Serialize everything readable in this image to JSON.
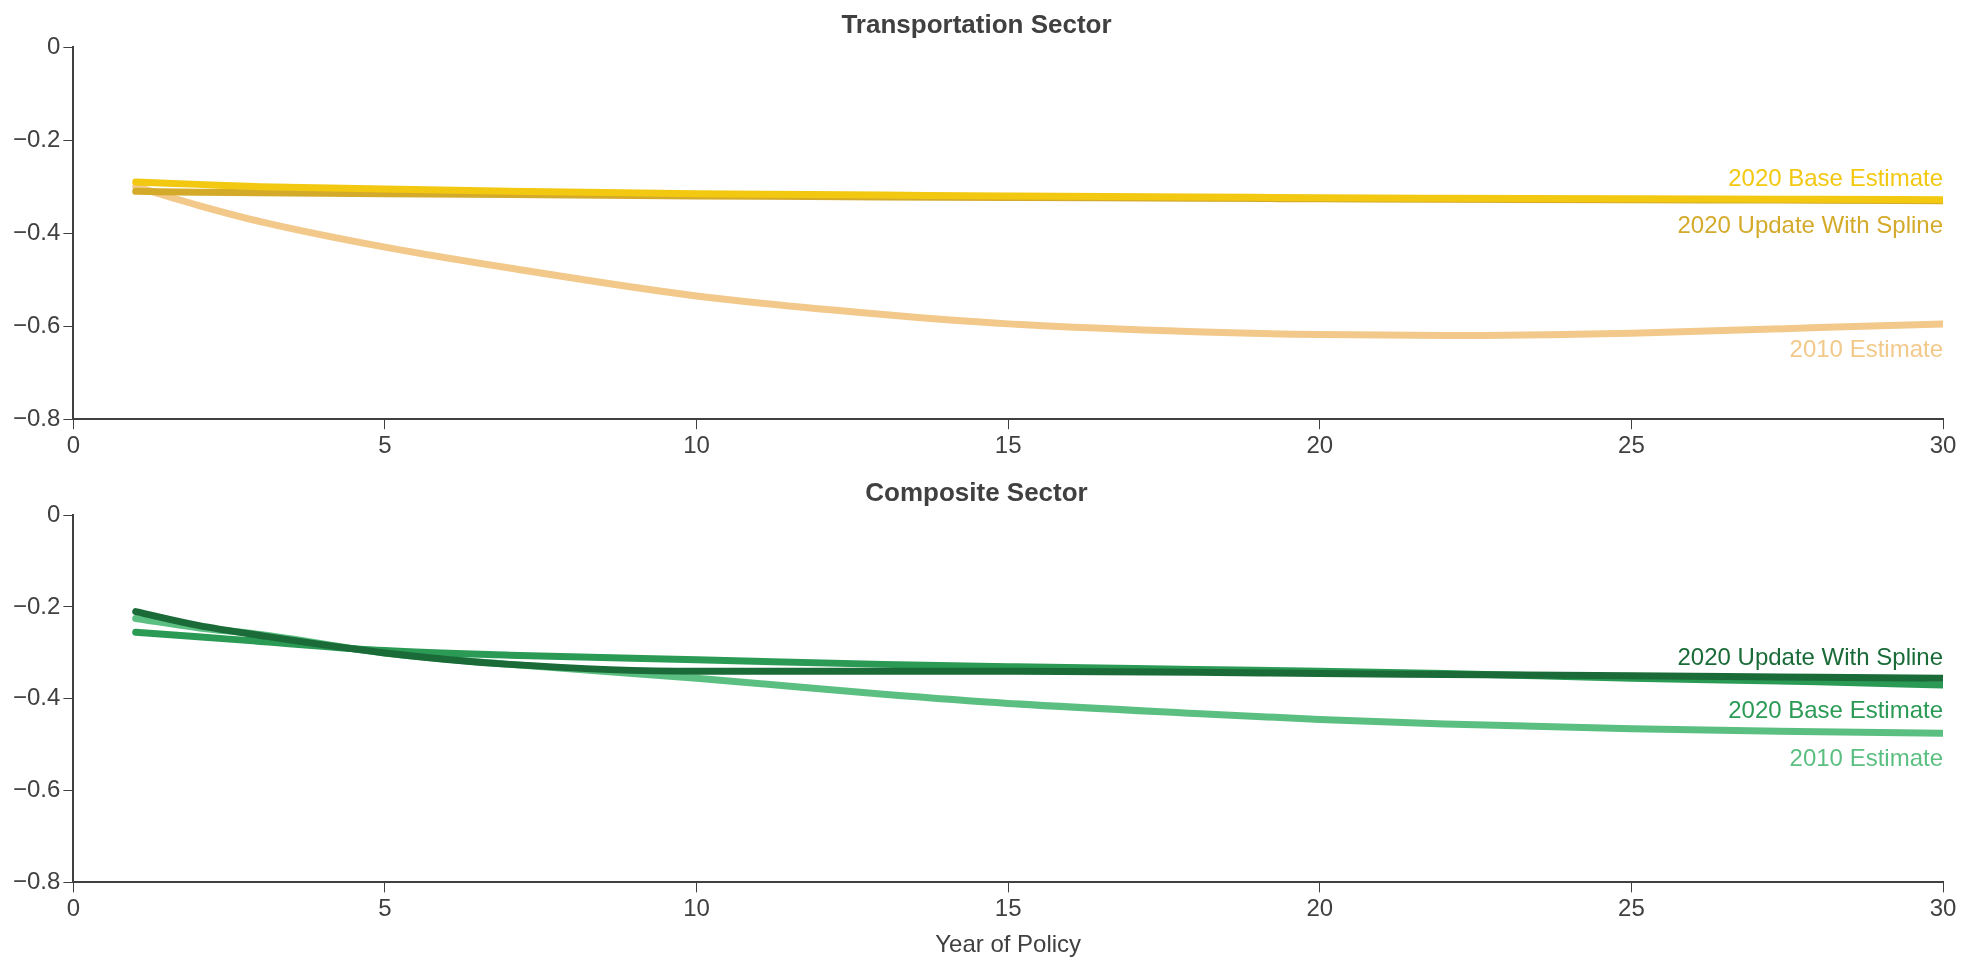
{
  "chart_data": [
    {
      "type": "line",
      "title": "Transportation Sector",
      "x": [
        1,
        2,
        3,
        5,
        7,
        10,
        13,
        15,
        18,
        20,
        22,
        25,
        28,
        30
      ],
      "series": [
        {
          "name": "2020 Base Estimate",
          "color": "#f2c811",
          "values": [
            -0.29,
            -0.295,
            -0.3,
            -0.305,
            -0.31,
            -0.315,
            -0.318,
            -0.32,
            -0.322,
            -0.324,
            -0.325,
            -0.326,
            -0.327,
            -0.328
          ]
        },
        {
          "name": "2020 Update With Spline",
          "color": "#d4aa2a",
          "values": [
            -0.31,
            -0.312,
            -0.313,
            -0.315,
            -0.317,
            -0.32,
            -0.322,
            -0.323,
            -0.325,
            -0.326,
            -0.327,
            -0.328,
            -0.329,
            -0.33
          ]
        },
        {
          "name": "2010 Estimate",
          "color": "#f2c98a",
          "values": [
            -0.3,
            -0.34,
            -0.375,
            -0.43,
            -0.475,
            -0.535,
            -0.575,
            -0.595,
            -0.612,
            -0.618,
            -0.62,
            -0.615,
            -0.603,
            -0.595
          ]
        }
      ],
      "xlim": [
        0,
        30
      ],
      "xticks": [
        0,
        5,
        10,
        15,
        20,
        25,
        30
      ],
      "ylim": [
        -0.8,
        0
      ],
      "yticks": [
        {
          "value": -0.8,
          "label": "−0.8"
        },
        {
          "value": -0.6,
          "label": "−0.6"
        },
        {
          "value": -0.4,
          "label": "−0.4"
        },
        {
          "value": -0.2,
          "label": "−0.2"
        },
        0
      ],
      "grid": false
    },
    {
      "type": "line",
      "title": "Composite Sector",
      "xlabel": "Year of Policy",
      "x": [
        1,
        2,
        3,
        5,
        7,
        10,
        13,
        15,
        18,
        20,
        22,
        25,
        28,
        30
      ],
      "series": [
        {
          "name": "2020 Update With Spline",
          "color": "#1a6b38",
          "values": [
            -0.21,
            -0.24,
            -0.262,
            -0.3,
            -0.325,
            -0.34,
            -0.34,
            -0.34,
            -0.342,
            -0.345,
            -0.347,
            -0.35,
            -0.353,
            -0.355
          ]
        },
        {
          "name": "2020 Base Estimate",
          "color": "#2a9a55",
          "values": [
            -0.255,
            -0.265,
            -0.275,
            -0.295,
            -0.305,
            -0.315,
            -0.325,
            -0.33,
            -0.336,
            -0.34,
            -0.345,
            -0.355,
            -0.363,
            -0.37
          ]
        },
        {
          "name": "2010 Estimate",
          "color": "#5cbf82",
          "values": [
            -0.225,
            -0.245,
            -0.26,
            -0.3,
            -0.325,
            -0.355,
            -0.39,
            -0.41,
            -0.432,
            -0.445,
            -0.455,
            -0.465,
            -0.472,
            -0.475
          ]
        }
      ],
      "xlim": [
        0,
        30
      ],
      "xticks": [
        0,
        5,
        10,
        15,
        20,
        25,
        30
      ],
      "ylim": [
        -0.8,
        0
      ],
      "yticks": [
        {
          "value": -0.8,
          "label": "−0.8"
        },
        {
          "value": -0.6,
          "label": "−0.6"
        },
        {
          "value": -0.4,
          "label": "−0.4"
        },
        {
          "value": -0.2,
          "label": "−0.2"
        },
        0
      ],
      "grid": false
    }
  ]
}
